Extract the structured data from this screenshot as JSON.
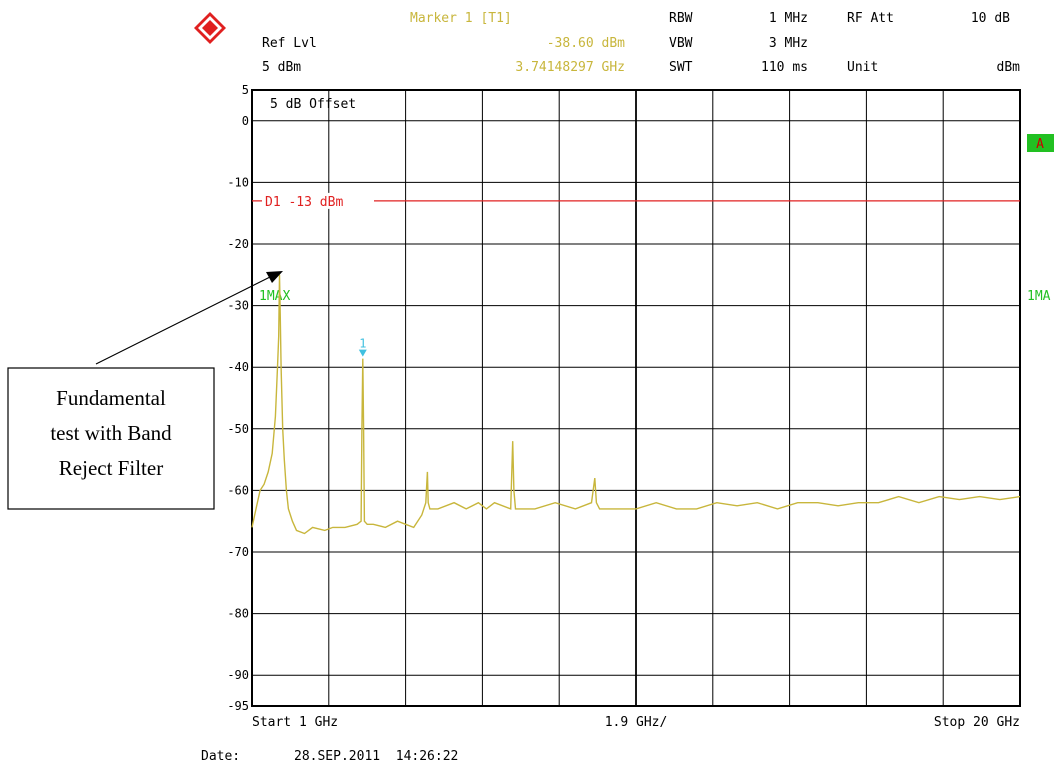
{
  "header": {
    "marker_title": "Marker 1 [T1]",
    "marker_level": "-38.60 dBm",
    "marker_freq": "3.74148297 GHz",
    "ref_lvl_label": "Ref Lvl",
    "ref_lvl_value": "5 dBm",
    "rbw_label": "RBW",
    "rbw_value": "1 MHz",
    "vbw_label": "VBW",
    "vbw_value": "3 MHz",
    "swt_label": "SWT",
    "swt_value": "110 ms",
    "rfatt_label": "RF Att",
    "rfatt_value": "10 dB",
    "unit_label": "Unit",
    "unit_value": "dBm"
  },
  "screen": {
    "offset_label": "5 dB Offset",
    "a_badge": "A",
    "trace_label": "1MAX",
    "trace_label_right": "1MA",
    "marker_label": "1",
    "start_label": "Start 1 GHz",
    "div_label": "1.9 GHz/",
    "stop_label": "Stop 20 GHz",
    "date_label": "Date:",
    "date_value": "28.SEP.2011  14:26:22"
  },
  "annotation": {
    "line1": "Fundamental",
    "line2": "test with Band",
    "line3": "Reject Filter"
  },
  "colors": {
    "trace": "#c8b63c",
    "limit": "#e02020",
    "marker_text": "#c8b63c",
    "green": "#22c022",
    "marker_symbol": "#40c0e0"
  },
  "chart_data": {
    "type": "line",
    "xlabel": "",
    "ylabel": "",
    "xlim": [
      1,
      20
    ],
    "ylim": [
      -95,
      5
    ],
    "y_ticks": [
      5,
      0,
      -10,
      -20,
      -30,
      -40,
      -50,
      -60,
      -70,
      -80,
      -90,
      -95
    ],
    "limit_line": {
      "label": "D1 -13 dBm",
      "value": -13
    },
    "marker": {
      "x": 3.74148297,
      "y": -38.6
    },
    "series": [
      {
        "x": [
          1.0,
          1.1,
          1.2,
          1.3,
          1.4,
          1.5,
          1.58,
          1.63,
          1.66,
          1.68,
          1.7,
          1.72,
          1.74,
          1.76,
          1.8,
          1.85,
          1.9,
          2.0,
          2.1,
          2.3,
          2.5,
          2.8,
          3.0,
          3.3,
          3.6,
          3.7,
          3.72,
          3.74,
          3.76,
          3.78,
          3.85,
          4.0,
          4.3,
          4.6,
          5.0,
          5.2,
          5.3,
          5.34,
          5.36,
          5.4,
          5.6,
          6.0,
          6.3,
          6.6,
          6.8,
          7.0,
          7.4,
          7.45,
          7.48,
          7.52,
          7.6,
          8.0,
          8.5,
          9.0,
          9.4,
          9.48,
          9.52,
          9.6,
          10.0,
          10.5,
          11.0,
          11.5,
          12.0,
          12.5,
          13.0,
          13.5,
          14.0,
          14.5,
          15.0,
          15.5,
          16.0,
          16.5,
          17.0,
          17.5,
          18.0,
          18.5,
          19.0,
          19.5,
          20.0
        ],
        "values": [
          -66,
          -63,
          -60,
          -59,
          -57,
          -54,
          -48,
          -40,
          -35,
          -25,
          -32,
          -40,
          -45,
          -50,
          -55,
          -60,
          -63,
          -65,
          -66.5,
          -67,
          -66,
          -66.5,
          -66,
          -66,
          -65.5,
          -65,
          -50,
          -38.6,
          -50,
          -65,
          -65.5,
          -65.5,
          -66,
          -65,
          -66,
          -64,
          -62,
          -57,
          -62,
          -63,
          -63,
          -62,
          -63,
          -62,
          -63,
          -62,
          -63,
          -52,
          -60,
          -63,
          -63,
          -63,
          -62,
          -63,
          -62,
          -58,
          -62,
          -63,
          -63,
          -63,
          -62,
          -63,
          -63,
          -62,
          -62.5,
          -62,
          -63,
          -62,
          -62,
          -62.5,
          -62,
          -62,
          -61,
          -62,
          -61,
          -61.5,
          -61,
          -61.5,
          -61
        ]
      }
    ]
  }
}
